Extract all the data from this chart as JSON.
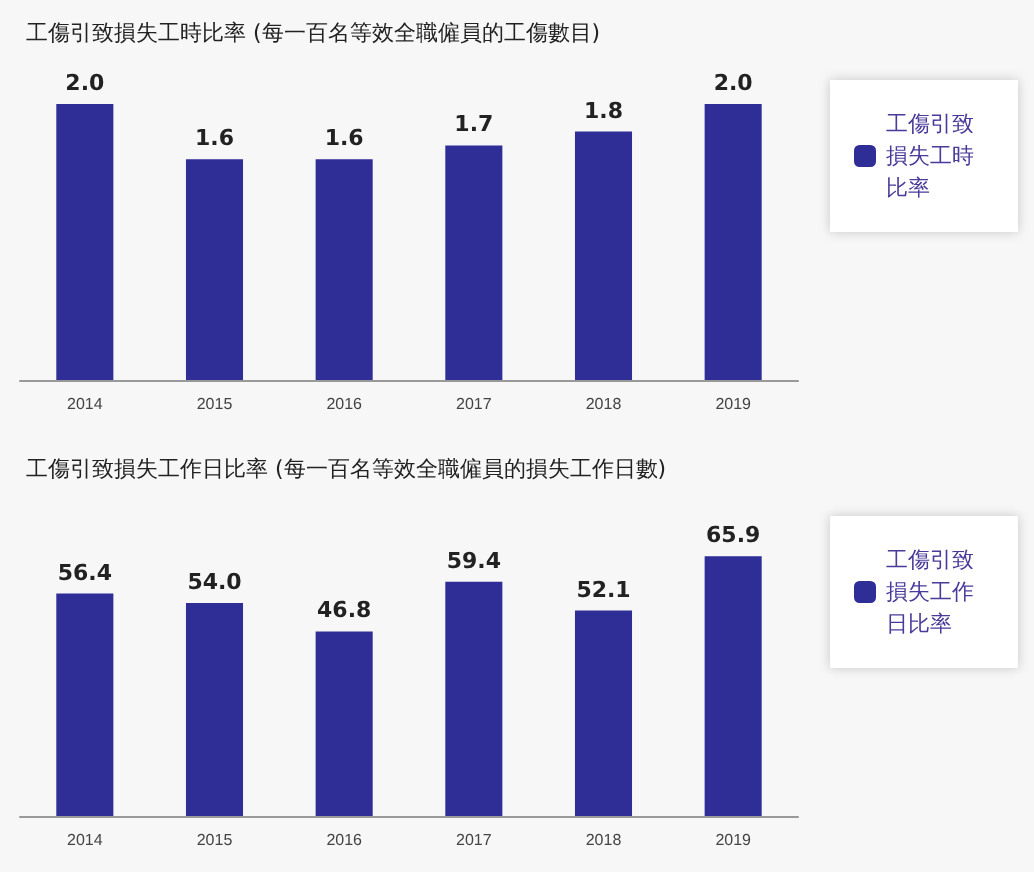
{
  "chart_data": [
    {
      "type": "bar",
      "title": "工傷引致損失工時比率 (每一百名等效全職僱員的工傷數目)",
      "categories": [
        "2014",
        "2015",
        "2016",
        "2017",
        "2018",
        "2019"
      ],
      "series": [
        {
          "name": "工傷引致損失工時比率",
          "color": "#2e2e96",
          "values": [
            2.0,
            1.6,
            1.6,
            1.7,
            1.8,
            2.0
          ],
          "value_labels": [
            "2.0",
            "1.6",
            "1.6",
            "1.7",
            "1.8",
            "2.0"
          ]
        }
      ],
      "legend": "right"
    },
    {
      "type": "bar",
      "title": "工傷引致損失工作日比率 (每一百名等效全職僱員的損失工作日數)",
      "categories": [
        "2014",
        "2015",
        "2016",
        "2017",
        "2018",
        "2019"
      ],
      "series": [
        {
          "name": "工傷引致損失工作日比率",
          "color": "#2e2e96",
          "values": [
            56.4,
            54.0,
            46.8,
            59.4,
            52.1,
            65.9
          ],
          "value_labels": [
            "56.4",
            "54.0",
            "46.8",
            "59.4",
            "52.1",
            "65.9"
          ]
        }
      ],
      "legend": "right"
    }
  ]
}
